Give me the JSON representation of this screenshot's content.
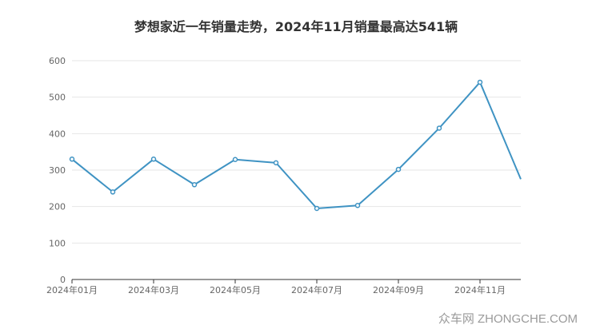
{
  "chart_data": {
    "type": "line",
    "title": "梦想家近一年销量走势，2024年11月销量最高达541辆",
    "xlabel": "",
    "ylabel": "",
    "ylim": [
      0,
      600
    ],
    "yticks": [
      0,
      100,
      200,
      300,
      400,
      500,
      600
    ],
    "x": [
      "2024年01月",
      "2024年02月",
      "2024年03月",
      "2024年04月",
      "2024年05月",
      "2024年06月",
      "2024年07月",
      "2024年08月",
      "2024年09月",
      "2024年10月",
      "2024年11月",
      "2024年12月"
    ],
    "xtick_labels": [
      "2024年01月",
      "2024年03月",
      "2024年05月",
      "2024年07月",
      "2024年09月",
      "2024年11月"
    ],
    "values": [
      330,
      240,
      330,
      260,
      329,
      320,
      195,
      203,
      302,
      415,
      541,
      275
    ],
    "grid": true,
    "line_color": "#3f93c3"
  },
  "watermark": "众车网 ZHONGCHE.COM"
}
